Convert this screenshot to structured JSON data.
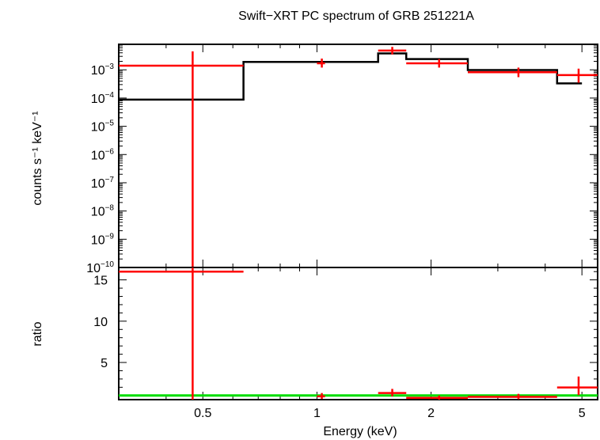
{
  "chart_data": [
    {
      "type": "line",
      "title": "Swift−XRT PC spectrum of GRB 251221A",
      "ylabel": "counts s⁻¹ keV⁻¹",
      "xscale": "log",
      "yscale": "log",
      "xlim": [
        0.3,
        5.5
      ],
      "ylim": [
        1e-10,
        0.008
      ],
      "yticks": [
        {
          "value": 1e-10,
          "label_base": "10",
          "label_exp": "−10"
        },
        {
          "value": 1e-09,
          "label_base": "10",
          "label_exp": "−9"
        },
        {
          "value": 1e-08,
          "label_base": "10",
          "label_exp": "−8"
        },
        {
          "value": 1e-07,
          "label_base": "10",
          "label_exp": "−7"
        },
        {
          "value": 1e-06,
          "label_base": "10",
          "label_exp": "−6"
        },
        {
          "value": 1e-05,
          "label_base": "10",
          "label_exp": "−5"
        },
        {
          "value": 0.0001,
          "label_base": "10",
          "label_exp": "−4"
        },
        {
          "value": 0.001,
          "label_base": "10",
          "label_exp": "−3"
        }
      ],
      "data_points": [
        {
          "xlo": 0.3,
          "xhi": 0.64,
          "x": 0.47,
          "y": 0.0014,
          "ylo": 1e-10,
          "yhi": 0.0045
        },
        {
          "xlo": 1.0,
          "xhi": 1.05,
          "x": 1.03,
          "y": 0.0017,
          "ylo": 0.0012,
          "yhi": 0.0025
        },
        {
          "xlo": 1.45,
          "xhi": 1.72,
          "x": 1.58,
          "y": 0.0048,
          "ylo": 0.0035,
          "yhi": 0.0065
        },
        {
          "xlo": 1.72,
          "xhi": 2.5,
          "x": 2.1,
          "y": 0.0017,
          "ylo": 0.0012,
          "yhi": 0.0024
        },
        {
          "xlo": 2.5,
          "xhi": 4.3,
          "x": 3.4,
          "y": 0.00082,
          "ylo": 0.00055,
          "yhi": 0.0012
        },
        {
          "xlo": 4.3,
          "xhi": 5.5,
          "x": 4.9,
          "y": 0.00065,
          "ylo": 0.00035,
          "yhi": 0.0011
        }
      ],
      "model": [
        {
          "xlo": 0.3,
          "xhi": 0.64,
          "y": 8.8e-05
        },
        {
          "xlo": 0.64,
          "xhi": 1.45,
          "y": 0.0019
        },
        {
          "xlo": 1.45,
          "xhi": 1.72,
          "y": 0.0038
        },
        {
          "xlo": 1.72,
          "xhi": 2.5,
          "y": 0.0024
        },
        {
          "xlo": 2.5,
          "xhi": 4.3,
          "y": 0.00098
        },
        {
          "xlo": 4.3,
          "xhi": 5.0,
          "y": 0.00033
        }
      ],
      "colors": {
        "data": "#ff0000",
        "model": "#000000"
      }
    },
    {
      "type": "line",
      "xlabel": "Energy (keV)",
      "ylabel": "ratio",
      "xscale": "log",
      "xlim": [
        0.3,
        5.5
      ],
      "ylim": [
        0.5,
        16.5
      ],
      "xticks": [
        {
          "value": 0.5,
          "label": "0.5"
        },
        {
          "value": 1,
          "label": "1"
        },
        {
          "value": 2,
          "label": "2"
        },
        {
          "value": 5,
          "label": "5"
        }
      ],
      "yticks": [
        {
          "value": 5,
          "label": "5"
        },
        {
          "value": 10,
          "label": "10"
        },
        {
          "value": 15,
          "label": "15"
        }
      ],
      "data_points": [
        {
          "xlo": 0.3,
          "xhi": 0.64,
          "x": 0.47,
          "y": 16.0,
          "ylo": 0.5,
          "yhi": 16.5
        },
        {
          "xlo": 1.0,
          "xhi": 1.05,
          "x": 1.03,
          "y": 0.9,
          "ylo": 0.6,
          "yhi": 1.3
        },
        {
          "xlo": 1.45,
          "xhi": 1.72,
          "x": 1.58,
          "y": 1.3,
          "ylo": 0.9,
          "yhi": 1.8
        },
        {
          "xlo": 1.72,
          "xhi": 2.5,
          "x": 2.1,
          "y": 0.72,
          "ylo": 0.5,
          "yhi": 1.0
        },
        {
          "xlo": 2.5,
          "xhi": 4.3,
          "x": 3.4,
          "y": 0.84,
          "ylo": 0.55,
          "yhi": 1.2
        },
        {
          "xlo": 4.3,
          "xhi": 5.5,
          "x": 4.9,
          "y": 1.97,
          "ylo": 1.05,
          "yhi": 3.3
        }
      ],
      "reference_line": 1.0,
      "colors": {
        "data": "#ff0000",
        "reference": "#00dd00"
      }
    }
  ]
}
